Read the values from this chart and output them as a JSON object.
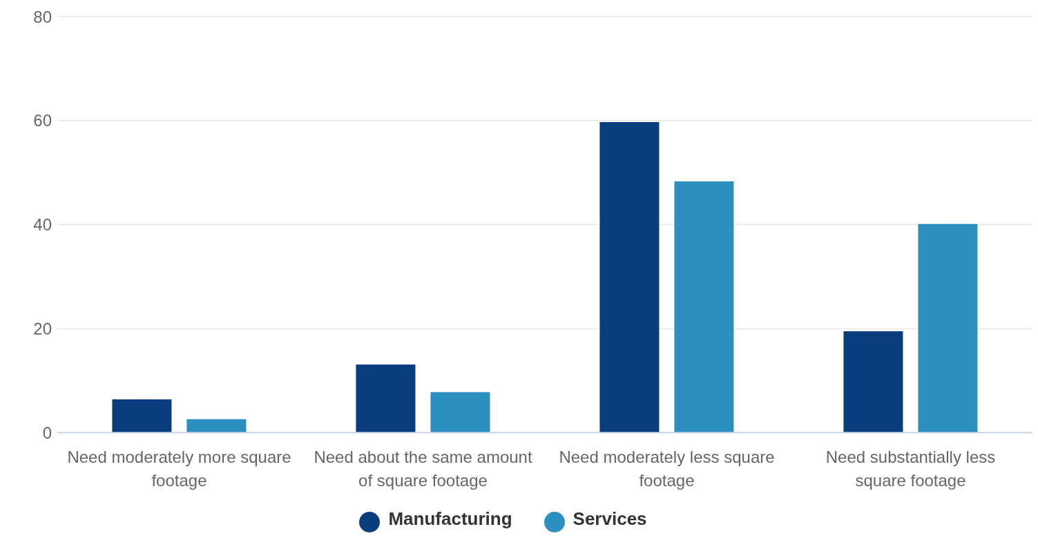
{
  "chart_data": {
    "type": "bar",
    "categories": [
      "Need moderately more square footage",
      "Need about the same amount of square footage",
      "Need moderately less square footage",
      "Need substantially less square footage"
    ],
    "series": [
      {
        "name": "Manufacturing",
        "color": "#0a3d7e",
        "values": [
          6.4,
          13.1,
          59.7,
          19.5
        ]
      },
      {
        "name": "Services",
        "color": "#2b8fc0",
        "values": [
          2.6,
          7.8,
          48.3,
          40.1
        ]
      }
    ],
    "ylim": [
      0,
      80
    ],
    "yticks": [
      0,
      20,
      40,
      60,
      80
    ],
    "grid": "y",
    "legend": "bottom",
    "marker": "circle"
  }
}
